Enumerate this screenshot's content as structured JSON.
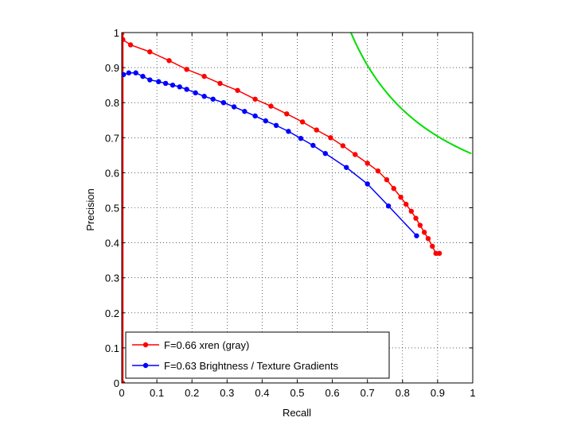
{
  "chart_data": {
    "type": "line",
    "xlabel": "Recall",
    "ylabel": "Precision",
    "xlim": [
      0,
      1
    ],
    "ylim": [
      0,
      1
    ],
    "grid": true,
    "legend_position": "bottom-left",
    "x_ticks": [
      "0",
      "0.1",
      "0.2",
      "0.3",
      "0.4",
      "0.5",
      "0.6",
      "0.7",
      "0.8",
      "0.9",
      "1"
    ],
    "y_ticks": [
      "0",
      "0.1",
      "0.2",
      "0.3",
      "0.4",
      "0.5",
      "0.6",
      "0.7",
      "0.8",
      "0.9",
      "1"
    ],
    "series": [
      {
        "name": "F=0.66 xren (gray)",
        "color": "#ff0000",
        "x": [
          0,
          0.003,
          0.025,
          0.08,
          0.135,
          0.185,
          0.235,
          0.28,
          0.33,
          0.38,
          0.425,
          0.47,
          0.515,
          0.555,
          0.595,
          0.63,
          0.665,
          0.7,
          0.73,
          0.755,
          0.775,
          0.795,
          0.81,
          0.825,
          0.838,
          0.85,
          0.862,
          0.873,
          0.885,
          0.895,
          0.905
        ],
        "y": [
          0.998,
          0.98,
          0.965,
          0.945,
          0.92,
          0.895,
          0.875,
          0.855,
          0.835,
          0.81,
          0.79,
          0.768,
          0.745,
          0.722,
          0.7,
          0.677,
          0.652,
          0.627,
          0.605,
          0.58,
          0.555,
          0.53,
          0.51,
          0.49,
          0.47,
          0.45,
          0.43,
          0.412,
          0.39,
          0.37,
          0.37
        ],
        "vertical_segment": {
          "x": 0,
          "y_from": 0,
          "y_to": 0.998
        }
      },
      {
        "name": "F=0.63 Brightness / Texture Gradients",
        "color": "#0000ff",
        "x": [
          0.005,
          0.02,
          0.04,
          0.06,
          0.08,
          0.105,
          0.125,
          0.145,
          0.165,
          0.185,
          0.21,
          0.235,
          0.26,
          0.29,
          0.32,
          0.35,
          0.38,
          0.41,
          0.44,
          0.475,
          0.51,
          0.545,
          0.58,
          0.64,
          0.7,
          0.76,
          0.84
        ],
        "y": [
          0.88,
          0.885,
          0.885,
          0.875,
          0.865,
          0.86,
          0.855,
          0.85,
          0.845,
          0.838,
          0.828,
          0.818,
          0.81,
          0.8,
          0.788,
          0.775,
          0.762,
          0.748,
          0.735,
          0.718,
          0.698,
          0.678,
          0.655,
          0.615,
          0.568,
          0.505,
          0.42
        ]
      },
      {
        "name": "",
        "color": "#00dd00",
        "f_value": 0.79,
        "markers": false
      }
    ]
  }
}
